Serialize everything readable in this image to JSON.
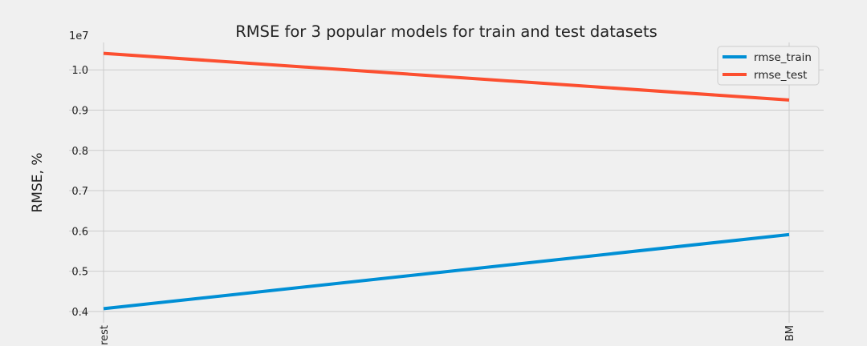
{
  "chart_data": {
    "type": "line",
    "title": "RMSE for 3 popular models for train and test datasets",
    "xlabel": "",
    "ylabel": "RMSE, %",
    "y_offset_label": "1e7",
    "categories": [
      "Random Forest",
      "LightGBM"
    ],
    "visible_category_labels": [
      "rest",
      "BM"
    ],
    "yticks": [
      "0.4",
      "0.5",
      "0.6",
      "0.7",
      "0.8",
      "0.9",
      "1.0"
    ],
    "yticks_values": [
      0.4,
      0.5,
      0.6,
      0.7,
      0.8,
      0.9,
      1.0
    ],
    "ylim": [
      0.372,
      1.068
    ],
    "grid": true,
    "legend_position": "top-right",
    "series": [
      {
        "name": "rmse_train",
        "color": "#008fd5",
        "values": [
          0.407,
          0.591
        ]
      },
      {
        "name": "rmse_test",
        "color": "#fc4f30",
        "values": [
          1.041,
          0.925
        ]
      }
    ]
  }
}
